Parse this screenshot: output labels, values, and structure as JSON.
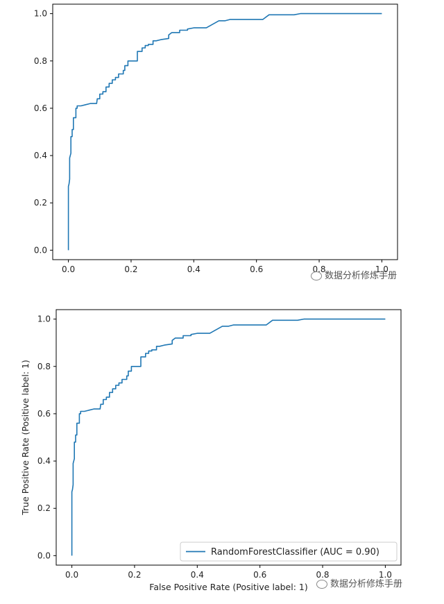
{
  "chart_data": [
    {
      "type": "line",
      "title": "",
      "xlabel": "",
      "ylabel": "",
      "xlim": [
        -0.05,
        1.05
      ],
      "ylim": [
        -0.04,
        1.04
      ],
      "xticks": [
        "0.0",
        "0.2",
        "0.4",
        "0.6",
        "0.8",
        "1.0"
      ],
      "yticks": [
        "0.0",
        "0.2",
        "0.4",
        "0.6",
        "0.8",
        "1.0"
      ],
      "series": [
        {
          "color": "#1f77b4",
          "x": [
            0.0,
            0.0,
            0.002,
            0.004,
            0.004,
            0.008,
            0.008,
            0.012,
            0.012,
            0.016,
            0.016,
            0.024,
            0.024,
            0.028,
            0.028,
            0.034,
            0.034,
            0.04,
            0.04,
            0.055,
            0.07,
            0.09,
            0.092,
            0.1,
            0.1,
            0.11,
            0.11,
            0.12,
            0.12,
            0.13,
            0.13,
            0.14,
            0.14,
            0.15,
            0.15,
            0.16,
            0.16,
            0.175,
            0.175,
            0.18,
            0.18,
            0.19,
            0.19,
            0.22,
            0.22,
            0.235,
            0.235,
            0.245,
            0.245,
            0.255,
            0.255,
            0.27,
            0.27,
            0.28,
            0.28,
            0.295,
            0.295,
            0.32,
            0.32,
            0.33,
            0.34,
            0.355,
            0.355,
            0.38,
            0.38,
            0.4,
            0.41,
            0.44,
            0.48,
            0.5,
            0.515,
            0.62,
            0.64,
            0.72,
            0.74,
            1.0
          ],
          "y": [
            0.0,
            0.27,
            0.28,
            0.3,
            0.39,
            0.41,
            0.48,
            0.48,
            0.51,
            0.51,
            0.56,
            0.56,
            0.6,
            0.6,
            0.61,
            0.61,
            0.61,
            0.61,
            0.61,
            0.615,
            0.62,
            0.62,
            0.64,
            0.64,
            0.66,
            0.66,
            0.67,
            0.67,
            0.69,
            0.69,
            0.705,
            0.705,
            0.72,
            0.72,
            0.73,
            0.73,
            0.745,
            0.745,
            0.76,
            0.76,
            0.78,
            0.78,
            0.8,
            0.8,
            0.84,
            0.84,
            0.855,
            0.855,
            0.865,
            0.865,
            0.87,
            0.87,
            0.885,
            0.885,
            0.885,
            0.89,
            0.89,
            0.895,
            0.91,
            0.92,
            0.92,
            0.92,
            0.93,
            0.93,
            0.935,
            0.94,
            0.94,
            0.94,
            0.97,
            0.97,
            0.975,
            0.975,
            0.995,
            0.995,
            1.0,
            1.0
          ]
        }
      ]
    },
    {
      "type": "line",
      "title": "",
      "xlabel": "False Positive Rate (Positive label: 1)",
      "ylabel": "True Positive Rate (Positive label: 1)",
      "xlim": [
        -0.05,
        1.05
      ],
      "ylim": [
        -0.04,
        1.04
      ],
      "xticks": [
        "0.0",
        "0.2",
        "0.4",
        "0.6",
        "0.8",
        "1.0"
      ],
      "yticks": [
        "0.0",
        "0.2",
        "0.4",
        "0.6",
        "0.8",
        "1.0"
      ],
      "legend": {
        "position": "lower-right",
        "entry": "RandomForestClassifier (AUC = 0.90)"
      },
      "series": [
        {
          "name": "RandomForestClassifier (AUC = 0.90)",
          "color": "#1f77b4",
          "x": [
            0.0,
            0.0,
            0.002,
            0.004,
            0.004,
            0.008,
            0.008,
            0.012,
            0.012,
            0.016,
            0.016,
            0.024,
            0.024,
            0.028,
            0.028,
            0.034,
            0.034,
            0.04,
            0.04,
            0.055,
            0.07,
            0.09,
            0.092,
            0.1,
            0.1,
            0.11,
            0.11,
            0.12,
            0.12,
            0.13,
            0.13,
            0.14,
            0.14,
            0.15,
            0.15,
            0.16,
            0.16,
            0.175,
            0.175,
            0.18,
            0.18,
            0.19,
            0.19,
            0.22,
            0.22,
            0.235,
            0.235,
            0.245,
            0.245,
            0.255,
            0.255,
            0.27,
            0.27,
            0.28,
            0.28,
            0.295,
            0.295,
            0.32,
            0.32,
            0.33,
            0.34,
            0.355,
            0.355,
            0.38,
            0.38,
            0.4,
            0.41,
            0.44,
            0.48,
            0.5,
            0.515,
            0.62,
            0.64,
            0.72,
            0.74,
            1.0
          ],
          "y": [
            0.0,
            0.27,
            0.28,
            0.3,
            0.39,
            0.41,
            0.48,
            0.48,
            0.51,
            0.51,
            0.56,
            0.56,
            0.6,
            0.6,
            0.61,
            0.61,
            0.61,
            0.61,
            0.61,
            0.615,
            0.62,
            0.62,
            0.64,
            0.64,
            0.66,
            0.66,
            0.67,
            0.67,
            0.69,
            0.69,
            0.705,
            0.705,
            0.72,
            0.72,
            0.73,
            0.73,
            0.745,
            0.745,
            0.76,
            0.76,
            0.78,
            0.78,
            0.8,
            0.8,
            0.84,
            0.84,
            0.855,
            0.855,
            0.865,
            0.865,
            0.87,
            0.87,
            0.885,
            0.885,
            0.885,
            0.89,
            0.89,
            0.895,
            0.91,
            0.92,
            0.92,
            0.92,
            0.93,
            0.93,
            0.935,
            0.94,
            0.94,
            0.94,
            0.97,
            0.97,
            0.975,
            0.975,
            0.995,
            0.995,
            1.0,
            1.0
          ]
        }
      ]
    }
  ],
  "watermark": {
    "text": "数据分析修炼手册",
    "icon": "wechat-icon"
  }
}
